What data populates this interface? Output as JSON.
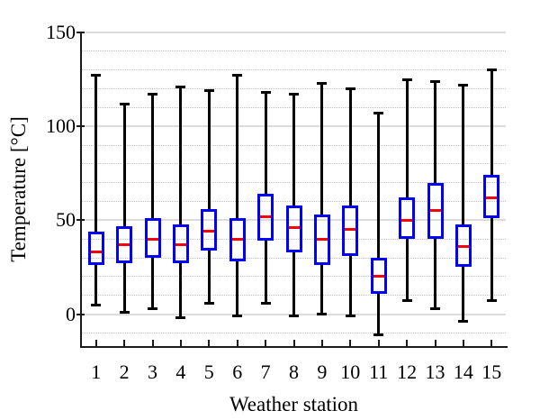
{
  "chart_data": {
    "type": "boxplot",
    "title": "",
    "xlabel": "Weather station",
    "ylabel": "Temperature [°C]",
    "categories": [
      "1",
      "2",
      "3",
      "4",
      "5",
      "6",
      "7",
      "8",
      "9",
      "10",
      "11",
      "12",
      "13",
      "14",
      "15"
    ],
    "ylim": [
      -17,
      150
    ],
    "ytick_values": [
      150,
      100,
      50,
      0
    ],
    "ytick_labels": [
      "150",
      "100",
      "50",
      "0"
    ],
    "minor_gridline_values": [
      -10,
      10,
      20,
      30,
      40,
      60,
      70,
      80,
      90,
      110,
      120,
      130,
      140
    ],
    "grid": "major-solid-minor-dotted",
    "legend": "none",
    "boxes": [
      {
        "station": "1",
        "whisker_low": 5,
        "q1": 26,
        "median": 33,
        "q3": 44,
        "whisker_high": 127
      },
      {
        "station": "2",
        "whisker_low": 1,
        "q1": 27,
        "median": 37,
        "q3": 47,
        "whisker_high": 112
      },
      {
        "station": "3",
        "whisker_low": 3,
        "q1": 30,
        "median": 40,
        "q3": 51,
        "whisker_high": 117
      },
      {
        "station": "4",
        "whisker_low": -2,
        "q1": 27,
        "median": 37,
        "q3": 48,
        "whisker_high": 121
      },
      {
        "station": "5",
        "whisker_low": 6,
        "q1": 34,
        "median": 44,
        "q3": 56,
        "whisker_high": 119
      },
      {
        "station": "6",
        "whisker_low": -1,
        "q1": 28,
        "median": 40,
        "q3": 51,
        "whisker_high": 127
      },
      {
        "station": "7",
        "whisker_low": 6,
        "q1": 39,
        "median": 52,
        "q3": 64,
        "whisker_high": 118
      },
      {
        "station": "8",
        "whisker_low": -1,
        "q1": 33,
        "median": 46,
        "q3": 58,
        "whisker_high": 117
      },
      {
        "station": "9",
        "whisker_low": 0,
        "q1": 26,
        "median": 40,
        "q3": 53,
        "whisker_high": 123
      },
      {
        "station": "10",
        "whisker_low": -1,
        "q1": 31,
        "median": 45,
        "q3": 58,
        "whisker_high": 120
      },
      {
        "station": "11",
        "whisker_low": -11,
        "q1": 11,
        "median": 20,
        "q3": 30,
        "whisker_high": 107
      },
      {
        "station": "12",
        "whisker_low": 7,
        "q1": 40,
        "median": 50,
        "q3": 62,
        "whisker_high": 125
      },
      {
        "station": "13",
        "whisker_low": 3,
        "q1": 40,
        "median": 55,
        "q3": 70,
        "whisker_high": 124
      },
      {
        "station": "14",
        "whisker_low": -4,
        "q1": 25,
        "median": 36,
        "q3": 48,
        "whisker_high": 122
      },
      {
        "station": "15",
        "whisker_low": 7,
        "q1": 51,
        "median": 62,
        "q3": 74,
        "whisker_high": 130
      }
    ],
    "colors": {
      "box": "#0000ff",
      "median": "#ff0000",
      "whisker": "#000000",
      "axis": "#1a1a1a",
      "grid_major": "#dcdcdc",
      "grid_minor": "#c2c2c2",
      "text": "#000000",
      "background": "#ffffff"
    }
  }
}
